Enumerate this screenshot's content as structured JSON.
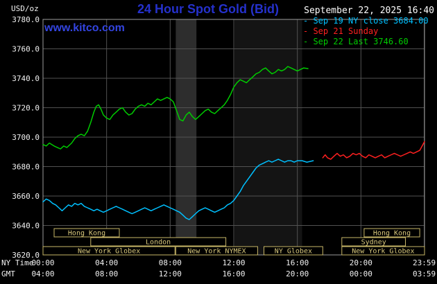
{
  "header": {
    "units_label": "USD/oz",
    "title": "24 Hour Spot Gold (Bid)",
    "datetime": "September 22, 2025 16:40",
    "watermark": "www.kitco.com"
  },
  "axis": {
    "ny_label": "NY Time",
    "gmt_label": "GMT"
  },
  "palette": {
    "title_blue": "#2531cc",
    "kitco_blue": "#3344e0",
    "grid_gray": "#525252",
    "border_gray": "#9b9b9b",
    "session_tan": "#c9b768",
    "session_text_tan": "#d8c87c",
    "cyan": "#00c0ff",
    "red": "#ff2020",
    "green": "#00cc00"
  },
  "chart_data": {
    "type": "line",
    "title": "24 Hour Spot Gold (Bid)",
    "ylabel": "USD/oz",
    "xlabel": "NY Time / GMT",
    "ylim": [
      3620,
      3780
    ],
    "xlim": [
      0,
      24
    ],
    "grid": true,
    "legend_position": "top-right",
    "background": "#000000",
    "grid_color": "#525252",
    "border_color": "#9b9b9b",
    "session_color": "#c9b768",
    "session_text_color": "#d8c87c",
    "yticks": [
      {
        "v": 3620,
        "label": "3620.0"
      },
      {
        "v": 3640,
        "label": "3640.0"
      },
      {
        "v": 3660,
        "label": "3660.0"
      },
      {
        "v": 3680,
        "label": "3680.0"
      },
      {
        "v": 3700,
        "label": "3700.0"
      },
      {
        "v": 3720,
        "label": "3720.0"
      },
      {
        "v": 3740,
        "label": "3740.0"
      },
      {
        "v": 3760,
        "label": "3760.0"
      },
      {
        "v": 3780,
        "label": "3780.0"
      }
    ],
    "xticks": [
      {
        "h": 0,
        "ny": "00:00",
        "gmt": "04:00"
      },
      {
        "h": 4,
        "ny": "04:00",
        "gmt": "08:00"
      },
      {
        "h": 8,
        "ny": "08:00",
        "gmt": "12:00"
      },
      {
        "h": 12,
        "ny": "12:00",
        "gmt": "16:00"
      },
      {
        "h": 16,
        "ny": "16:00",
        "gmt": "20:00"
      },
      {
        "h": 20,
        "ny": "20:00",
        "gmt": "00:00"
      },
      {
        "h": 23.983,
        "ny": "23:59",
        "gmt": "03:59"
      }
    ],
    "bands": [
      {
        "start": 8.35,
        "end": 9.65,
        "color": "#2d2d2d"
      },
      {
        "start": 12.05,
        "end": 16.3,
        "color": "#141414"
      }
    ],
    "series": [
      {
        "name": "Sep 19 NY close",
        "legend": "- Sep 19 NY close 3684.00",
        "color": "#00c0ff",
        "close": 3684.0,
        "points": [
          [
            0.0,
            3656
          ],
          [
            0.2,
            3658
          ],
          [
            0.4,
            3657
          ],
          [
            0.6,
            3655
          ],
          [
            0.8,
            3654
          ],
          [
            1.0,
            3652
          ],
          [
            1.2,
            3650
          ],
          [
            1.4,
            3652
          ],
          [
            1.6,
            3654
          ],
          [
            1.8,
            3653
          ],
          [
            2.0,
            3655
          ],
          [
            2.2,
            3654
          ],
          [
            2.4,
            3655
          ],
          [
            2.6,
            3653
          ],
          [
            2.8,
            3652
          ],
          [
            3.0,
            3651
          ],
          [
            3.2,
            3650
          ],
          [
            3.4,
            3651
          ],
          [
            3.6,
            3650
          ],
          [
            3.8,
            3649
          ],
          [
            4.0,
            3650
          ],
          [
            4.2,
            3651
          ],
          [
            4.4,
            3652
          ],
          [
            4.6,
            3653
          ],
          [
            4.8,
            3652
          ],
          [
            5.0,
            3651
          ],
          [
            5.2,
            3650
          ],
          [
            5.4,
            3649
          ],
          [
            5.6,
            3648
          ],
          [
            5.8,
            3649
          ],
          [
            6.0,
            3650
          ],
          [
            6.2,
            3651
          ],
          [
            6.4,
            3652
          ],
          [
            6.6,
            3651
          ],
          [
            6.8,
            3650
          ],
          [
            7.0,
            3651
          ],
          [
            7.2,
            3652
          ],
          [
            7.4,
            3653
          ],
          [
            7.6,
            3654
          ],
          [
            7.8,
            3653
          ],
          [
            8.0,
            3652
          ],
          [
            8.2,
            3651
          ],
          [
            8.4,
            3650
          ],
          [
            8.6,
            3649
          ],
          [
            8.8,
            3647
          ],
          [
            9.0,
            3645
          ],
          [
            9.2,
            3644
          ],
          [
            9.4,
            3646
          ],
          [
            9.6,
            3648
          ],
          [
            9.8,
            3650
          ],
          [
            10.0,
            3651
          ],
          [
            10.2,
            3652
          ],
          [
            10.4,
            3651
          ],
          [
            10.6,
            3650
          ],
          [
            10.8,
            3649
          ],
          [
            11.0,
            3650
          ],
          [
            11.2,
            3651
          ],
          [
            11.4,
            3652
          ],
          [
            11.6,
            3654
          ],
          [
            11.8,
            3655
          ],
          [
            12.0,
            3657
          ],
          [
            12.2,
            3660
          ],
          [
            12.4,
            3663
          ],
          [
            12.6,
            3667
          ],
          [
            12.8,
            3670
          ],
          [
            13.0,
            3673
          ],
          [
            13.2,
            3676
          ],
          [
            13.4,
            3679
          ],
          [
            13.6,
            3681
          ],
          [
            13.8,
            3682
          ],
          [
            14.0,
            3683
          ],
          [
            14.2,
            3684
          ],
          [
            14.4,
            3683
          ],
          [
            14.6,
            3684
          ],
          [
            14.8,
            3685
          ],
          [
            15.0,
            3684
          ],
          [
            15.2,
            3683
          ],
          [
            15.4,
            3684
          ],
          [
            15.6,
            3684
          ],
          [
            15.8,
            3683
          ],
          [
            16.0,
            3684
          ],
          [
            16.3,
            3684
          ],
          [
            16.6,
            3683
          ],
          [
            17.0,
            3684
          ]
        ]
      },
      {
        "name": "Sep 21 Sunday",
        "legend": "- Sep 21 Sunday",
        "color": "#ff2020",
        "points": [
          [
            17.6,
            3686
          ],
          [
            17.75,
            3688
          ],
          [
            17.9,
            3686
          ],
          [
            18.1,
            3685
          ],
          [
            18.3,
            3687
          ],
          [
            18.5,
            3689
          ],
          [
            18.7,
            3687
          ],
          [
            18.9,
            3688
          ],
          [
            19.1,
            3686
          ],
          [
            19.3,
            3687
          ],
          [
            19.5,
            3689
          ],
          [
            19.7,
            3688
          ],
          [
            19.9,
            3689
          ],
          [
            20.1,
            3687
          ],
          [
            20.3,
            3686
          ],
          [
            20.5,
            3688
          ],
          [
            20.7,
            3687
          ],
          [
            20.9,
            3686
          ],
          [
            21.1,
            3687
          ],
          [
            21.3,
            3688
          ],
          [
            21.5,
            3686
          ],
          [
            21.7,
            3687
          ],
          [
            21.9,
            3688
          ],
          [
            22.1,
            3689
          ],
          [
            22.3,
            3688
          ],
          [
            22.5,
            3687
          ],
          [
            22.7,
            3688
          ],
          [
            22.9,
            3689
          ],
          [
            23.1,
            3690
          ],
          [
            23.3,
            3689
          ],
          [
            23.5,
            3690
          ],
          [
            23.7,
            3691
          ],
          [
            23.85,
            3694
          ],
          [
            24.0,
            3697
          ]
        ]
      },
      {
        "name": "Sep 22 Last",
        "legend": "- Sep 22 Last 3746.60",
        "color": "#00cc00",
        "last": 3746.6,
        "points": [
          [
            0.0,
            3695
          ],
          [
            0.2,
            3694
          ],
          [
            0.4,
            3696
          ],
          [
            0.7,
            3694
          ],
          [
            0.9,
            3693
          ],
          [
            1.1,
            3692
          ],
          [
            1.3,
            3694
          ],
          [
            1.5,
            3693
          ],
          [
            1.8,
            3696
          ],
          [
            2.0,
            3699
          ],
          [
            2.2,
            3701
          ],
          [
            2.4,
            3702
          ],
          [
            2.6,
            3701
          ],
          [
            2.8,
            3704
          ],
          [
            3.0,
            3710
          ],
          [
            3.2,
            3717
          ],
          [
            3.35,
            3721
          ],
          [
            3.5,
            3722
          ],
          [
            3.65,
            3719
          ],
          [
            3.8,
            3715
          ],
          [
            4.0,
            3713
          ],
          [
            4.2,
            3712
          ],
          [
            4.4,
            3715
          ],
          [
            4.6,
            3717
          ],
          [
            4.8,
            3719
          ],
          [
            5.0,
            3720
          ],
          [
            5.2,
            3717
          ],
          [
            5.4,
            3715
          ],
          [
            5.6,
            3716
          ],
          [
            5.8,
            3719
          ],
          [
            6.0,
            3721
          ],
          [
            6.2,
            3722
          ],
          [
            6.4,
            3721
          ],
          [
            6.6,
            3723
          ],
          [
            6.8,
            3722
          ],
          [
            7.0,
            3724
          ],
          [
            7.2,
            3726
          ],
          [
            7.4,
            3725
          ],
          [
            7.6,
            3726
          ],
          [
            7.8,
            3727
          ],
          [
            8.0,
            3726
          ],
          [
            8.2,
            3724
          ],
          [
            8.4,
            3718
          ],
          [
            8.6,
            3712
          ],
          [
            8.8,
            3711
          ],
          [
            9.0,
            3715
          ],
          [
            9.2,
            3717
          ],
          [
            9.4,
            3714
          ],
          [
            9.6,
            3712
          ],
          [
            9.8,
            3714
          ],
          [
            10.0,
            3716
          ],
          [
            10.2,
            3718
          ],
          [
            10.4,
            3719
          ],
          [
            10.6,
            3717
          ],
          [
            10.8,
            3716
          ],
          [
            11.0,
            3718
          ],
          [
            11.2,
            3720
          ],
          [
            11.4,
            3722
          ],
          [
            11.6,
            3725
          ],
          [
            11.8,
            3729
          ],
          [
            12.0,
            3734
          ],
          [
            12.2,
            3737
          ],
          [
            12.4,
            3739
          ],
          [
            12.6,
            3738
          ],
          [
            12.8,
            3737
          ],
          [
            13.0,
            3739
          ],
          [
            13.2,
            3741
          ],
          [
            13.4,
            3743
          ],
          [
            13.6,
            3744
          ],
          [
            13.8,
            3746
          ],
          [
            14.0,
            3747
          ],
          [
            14.2,
            3745
          ],
          [
            14.4,
            3743
          ],
          [
            14.6,
            3744
          ],
          [
            14.8,
            3746
          ],
          [
            15.0,
            3745
          ],
          [
            15.2,
            3746
          ],
          [
            15.4,
            3748
          ],
          [
            15.6,
            3747
          ],
          [
            15.8,
            3746
          ],
          [
            16.0,
            3745
          ],
          [
            16.2,
            3746
          ],
          [
            16.4,
            3747
          ],
          [
            16.67,
            3746.6
          ]
        ]
      }
    ],
    "sessions": [
      {
        "row": 0,
        "start": 0.7,
        "end": 4.8,
        "label": "Hong Kong"
      },
      {
        "row": 0,
        "start": 20.2,
        "end": 23.7,
        "label": "Hong Kong"
      },
      {
        "row": 1,
        "start": 3.0,
        "end": 11.5,
        "label": "London"
      },
      {
        "row": 1,
        "start": 18.8,
        "end": 22.8,
        "label": "Sydney"
      },
      {
        "row": 2,
        "start": 0.0,
        "end": 8.3,
        "label": "New York Globex"
      },
      {
        "row": 2,
        "start": 8.35,
        "end": 13.5,
        "label": "New York NYMEX"
      },
      {
        "row": 2,
        "start": 13.9,
        "end": 17.6,
        "label": "NY Globex"
      },
      {
        "row": 2,
        "start": 18.8,
        "end": 24.0,
        "label": "New York Globex"
      }
    ]
  }
}
